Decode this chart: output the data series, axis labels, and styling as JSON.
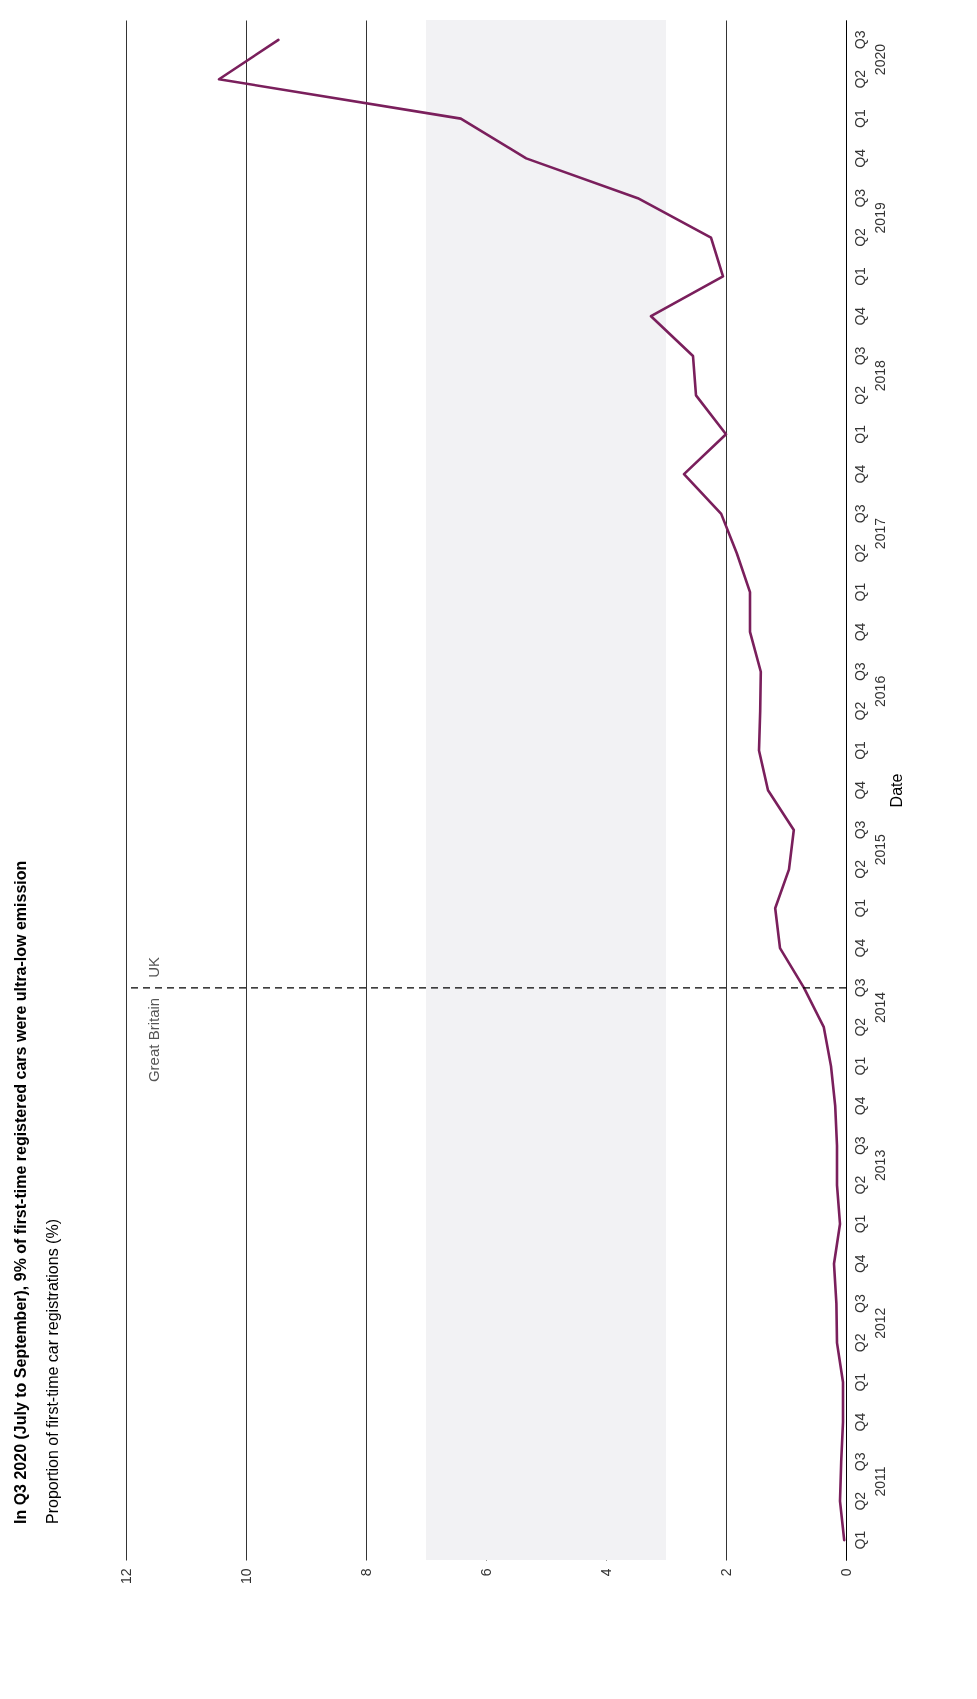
{
  "chart_data": {
    "type": "line",
    "orientation": "horizontal",
    "title": "In Q3 2020 (July to September), 9% of first-time registered cars were ultra-low emission",
    "subtitle": "Proportion of first-time car registrations (%)",
    "ylabel": "Date",
    "x": [
      "2011-01",
      "2011-04",
      "2011-07",
      "2011-10",
      "2012-01",
      "2012-04",
      "2012-07",
      "2012-10",
      "2013-01",
      "2013-04",
      "2013-07",
      "2013-10",
      "2014-01",
      "2014-04",
      "2014-07",
      "2014-10",
      "2015-01",
      "2015-04",
      "2015-07",
      "2015-10",
      "2016-01",
      "2016-04",
      "2016-07",
      "2016-10",
      "2017-01",
      "2017-04",
      "2017-07",
      "2017-10",
      "2018-01",
      "2018-04",
      "2018-07",
      "2018-10",
      "2019-01",
      "2019-04",
      "2019-07",
      "2019-10",
      "2020-01",
      "2020-04",
      "2020-07"
    ],
    "series": [
      {
        "color": "#7a1f5c",
        "values": [
          0.03,
          0.1,
          0.08,
          0.05,
          0.05,
          0.15,
          0.16,
          0.2,
          0.1,
          0.15,
          0.15,
          0.18,
          0.25,
          0.37,
          0.7,
          1.1,
          1.18,
          0.95,
          0.87,
          1.3,
          1.45,
          1.43,
          1.42,
          1.6,
          1.6,
          1.82,
          2.08,
          2.7,
          2.0,
          2.5,
          2.55,
          3.25,
          2.05,
          2.25,
          3.47,
          5.33,
          6.42,
          10.45,
          9.46
        ]
      }
    ],
    "xlim": [
      12,
      0
    ],
    "xticks": [
      0,
      2,
      4,
      6,
      8,
      10,
      12
    ],
    "grid": "x",
    "ylim": [
      "2010-11-16",
      "2020-08-16"
    ],
    "yticks": [
      {
        "value": "2011-01",
        "label": "Q1"
      },
      {
        "value": "2011-04",
        "label": "Q2"
      },
      {
        "value": "2011-07",
        "label": "Q3"
      },
      {
        "value": "2011-10",
        "label": "Q4"
      },
      {
        "value": "2012-01",
        "label": "Q1"
      },
      {
        "value": "2012-04",
        "label": "Q2"
      },
      {
        "value": "2012-07",
        "label": "Q3"
      },
      {
        "value": "2012-10",
        "label": "Q4"
      },
      {
        "value": "2013-01",
        "label": "Q1"
      },
      {
        "value": "2013-04",
        "label": "Q2"
      },
      {
        "value": "2013-07",
        "label": "Q3"
      },
      {
        "value": "2013-10",
        "label": "Q4"
      },
      {
        "value": "2014-01",
        "label": "Q1"
      },
      {
        "value": "2014-04",
        "label": "Q2"
      },
      {
        "value": "2014-07",
        "label": "Q3"
      },
      {
        "value": "2014-10",
        "label": "Q4"
      },
      {
        "value": "2015-01",
        "label": "Q1"
      },
      {
        "value": "2015-04",
        "label": "Q2"
      },
      {
        "value": "2015-07",
        "label": "Q3"
      },
      {
        "value": "2015-10",
        "label": "Q4"
      },
      {
        "value": "2016-01",
        "label": "Q1"
      },
      {
        "value": "2016-04",
        "label": "Q2"
      },
      {
        "value": "2016-07",
        "label": "Q3"
      },
      {
        "value": "2016-10",
        "label": "Q4"
      },
      {
        "value": "2017-01",
        "label": "Q1"
      },
      {
        "value": "2017-04",
        "label": "Q2"
      },
      {
        "value": "2017-07",
        "label": "Q3"
      },
      {
        "value": "2017-10",
        "label": "Q4"
      },
      {
        "value": "2018-01",
        "label": "Q1"
      },
      {
        "value": "2018-04",
        "label": "Q2"
      },
      {
        "value": "2018-07",
        "label": "Q3"
      },
      {
        "value": "2018-10",
        "label": "Q4"
      },
      {
        "value": "2019-01",
        "label": "Q1"
      },
      {
        "value": "2019-04",
        "label": "Q2"
      },
      {
        "value": "2019-07",
        "label": "Q3"
      },
      {
        "value": "2019-10",
        "label": "Q4"
      },
      {
        "value": "2020-01",
        "label": "Q1"
      },
      {
        "value": "2020-04",
        "label": "Q2"
      },
      {
        "value": "2020-07",
        "label": "Q3"
      }
    ],
    "bands": [
      {
        "axis": "x",
        "from": 3,
        "to": 7,
        "color": "#f2f2f4"
      }
    ],
    "ref_lines": [
      {
        "axis": "y",
        "value": "2014-07",
        "line_style": "dashed"
      }
    ],
    "annotations": [
      "Great Britain",
      "UK",
      "2011",
      "2012",
      "2013",
      "2014",
      "2015",
      "2016",
      "2017",
      "2018",
      "2019",
      "2020"
    ]
  }
}
